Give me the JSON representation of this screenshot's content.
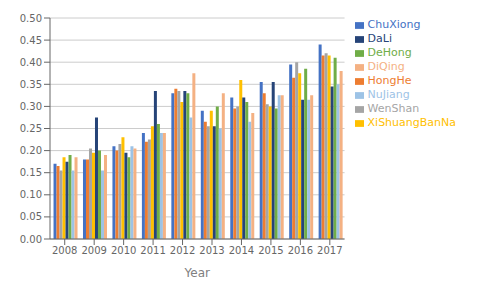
{
  "chart_data": {
    "type": "bar",
    "xlabel": "Year",
    "categories": [
      "2008",
      "2009",
      "2010",
      "2011",
      "2012",
      "2013",
      "2014",
      "2015",
      "2016",
      "2017"
    ],
    "series": [
      {
        "name": "ChuXiong",
        "color": "#4472C4",
        "values": [
          0.17,
          0.18,
          0.21,
          0.24,
          0.33,
          0.29,
          0.32,
          0.355,
          0.395,
          0.44
        ]
      },
      {
        "name": "HongHe",
        "color": "#ED7D31",
        "values": [
          0.165,
          0.18,
          0.2,
          0.22,
          0.34,
          0.265,
          0.295,
          0.33,
          0.365,
          0.415
        ]
      },
      {
        "name": "WenShan",
        "color": "#A5A5A5",
        "values": [
          0.155,
          0.205,
          0.215,
          0.225,
          0.335,
          0.255,
          0.3,
          0.305,
          0.4,
          0.42
        ]
      },
      {
        "name": "XiShuangBanNa",
        "color": "#FFC000",
        "values": [
          0.185,
          0.195,
          0.23,
          0.255,
          0.31,
          0.29,
          0.36,
          0.3,
          0.375,
          0.415
        ]
      },
      {
        "name": "DaLi",
        "color": "#264478",
        "values": [
          0.175,
          0.275,
          0.195,
          0.335,
          0.335,
          0.255,
          0.32,
          0.355,
          0.315,
          0.345
        ]
      },
      {
        "name": "DeHong",
        "color": "#70AD47",
        "values": [
          0.19,
          0.2,
          0.185,
          0.26,
          0.33,
          0.3,
          0.31,
          0.295,
          0.385,
          0.41
        ]
      },
      {
        "name": "NuJiang",
        "color": "#9DC3E6",
        "values": [
          0.155,
          0.155,
          0.21,
          0.24,
          0.275,
          0.25,
          0.265,
          0.325,
          0.315,
          0.35
        ]
      },
      {
        "name": "DiQing",
        "color": "#F4B183",
        "values": [
          0.185,
          0.19,
          0.205,
          0.24,
          0.375,
          0.33,
          0.285,
          0.325,
          0.325,
          0.38
        ]
      }
    ],
    "ylim": [
      0,
      0.5
    ],
    "yticks": [
      {
        "value": 0,
        "label": "0.00"
      },
      0.05,
      {
        "value": 0.1,
        "label": "0.10"
      },
      0.15,
      {
        "value": 0.2,
        "label": "0.20"
      },
      0.25,
      {
        "value": 0.3,
        "label": "0.30"
      },
      0.35,
      {
        "value": 0.4,
        "label": "0.40"
      },
      0.45,
      {
        "value": 0.5,
        "label": "0.50"
      }
    ],
    "grid": true,
    "legend": "right"
  }
}
